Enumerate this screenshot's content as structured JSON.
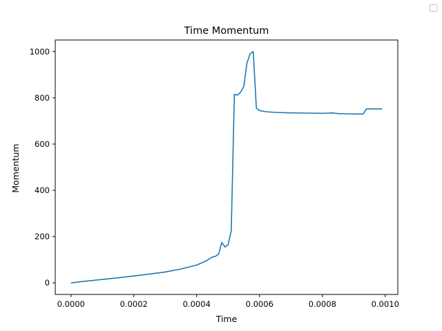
{
  "chart_data": {
    "type": "line",
    "title": "Time Momentum",
    "xlabel": "Time",
    "ylabel": "Momentum",
    "xlim": [
      -5e-05,
      0.00104
    ],
    "ylim": [
      -50,
      1050
    ],
    "x_ticks": [
      0.0,
      0.0002,
      0.0004,
      0.0006,
      0.0008,
      0.001
    ],
    "x_tick_labels": [
      "0.0000",
      "0.0002",
      "0.0004",
      "0.0006",
      "0.0008",
      "0.0010"
    ],
    "y_ticks": [
      0,
      200,
      400,
      600,
      800,
      1000
    ],
    "y_tick_labels": [
      "0",
      "200",
      "400",
      "600",
      "800",
      "1000"
    ],
    "grid": false,
    "legend": "top-right",
    "series": [
      {
        "color": "#1f77b4",
        "x": [
          0.0,
          5e-05,
          0.0001,
          0.00015,
          0.0002,
          0.00025,
          0.0003,
          0.00035,
          0.0004,
          0.00043,
          0.00045,
          0.00046,
          0.00047,
          0.00048,
          0.00049,
          0.0005,
          0.00051,
          0.00052,
          0.00053,
          0.00054,
          0.00055,
          0.00056,
          0.00057,
          0.00058,
          0.00059,
          0.0006,
          0.00062,
          0.00065,
          0.0007,
          0.00075,
          0.0008,
          0.00082,
          0.00083,
          0.00085,
          0.0009,
          0.00093,
          0.00094,
          0.00095,
          0.00099
        ],
        "y": [
          0,
          8,
          15,
          22,
          30,
          38,
          47,
          60,
          77,
          95,
          112,
          115,
          125,
          175,
          155,
          165,
          225,
          815,
          812,
          825,
          850,
          950,
          990,
          1000,
          755,
          745,
          740,
          737,
          735,
          734,
          733,
          734,
          735,
          732,
          730,
          730,
          752,
          752,
          752
        ]
      }
    ]
  }
}
